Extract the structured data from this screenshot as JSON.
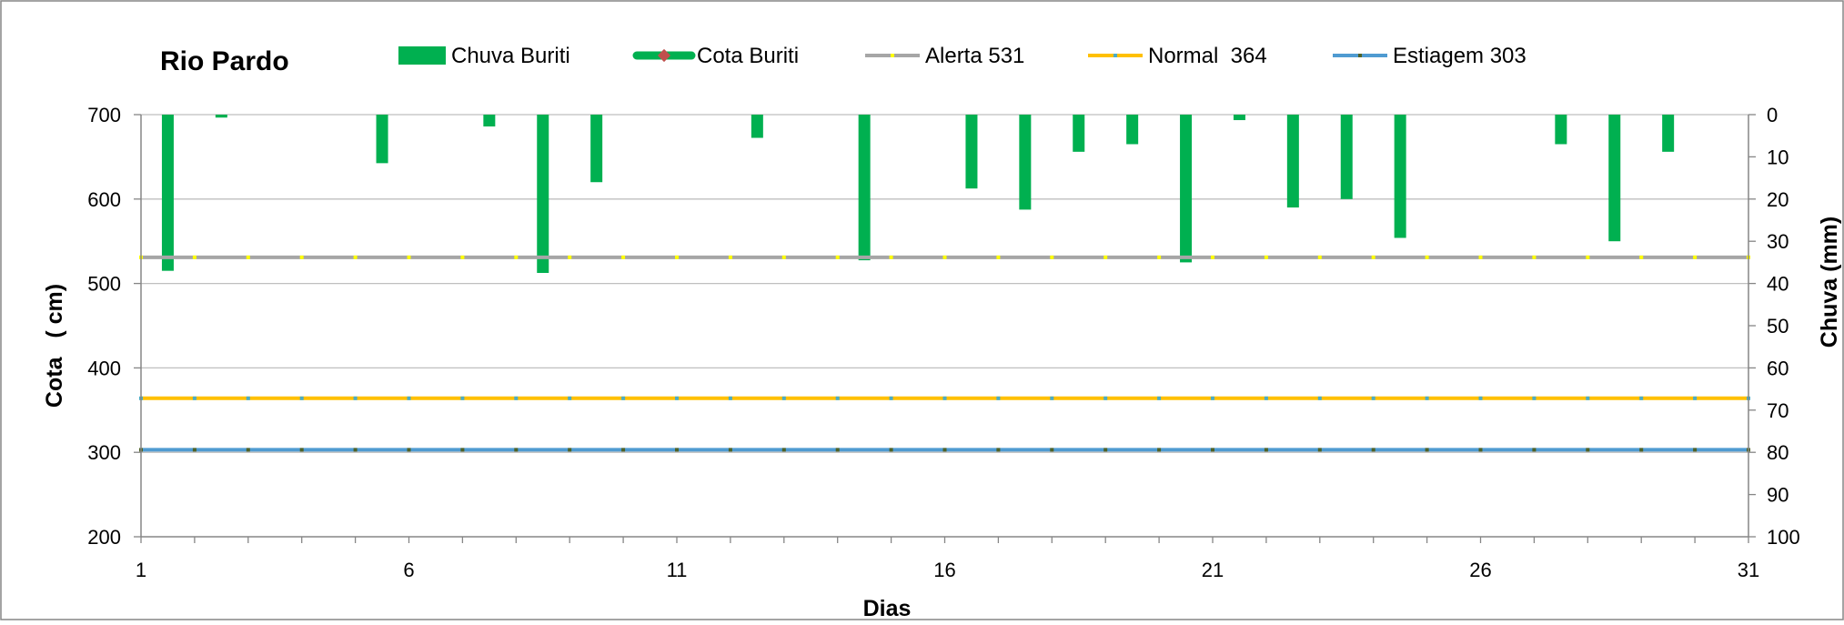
{
  "chart_data": {
    "type": "bar",
    "title": "Rio Pardo",
    "xlabel": "Dias",
    "ylabel": "Cota   ( cm)",
    "y2label": "Chuva (mm)",
    "x_ticks": [
      "1",
      "6",
      "11",
      "16",
      "21",
      "26",
      "31"
    ],
    "y_ticks": [
      "700",
      "600",
      "500",
      "400",
      "300",
      "200"
    ],
    "y2_ticks": [
      "0",
      "10",
      "20",
      "30",
      "40",
      "50",
      "60",
      "70",
      "80",
      "90",
      "100"
    ],
    "xlim": [
      1,
      31
    ],
    "ylim": [
      200,
      700
    ],
    "y2lim": [
      0,
      100
    ],
    "y2_inverted": true,
    "grid": "horizontal",
    "legend_position": "top",
    "colors": {
      "chuva": "#00b050",
      "cota": "#00b050",
      "cota_marker": "#c0504d",
      "alerta": "#a6a6a6",
      "alerta_marker": "#ffff00",
      "normal": "#ffc000",
      "normal_marker": "#4bacc6",
      "estiagem": "#4f9bd1",
      "estiagem_marker": "#4f6228",
      "grid": "#bfbfbf",
      "axis": "#868686"
    },
    "series": [
      {
        "name": "Chuva Buriti",
        "type": "bar",
        "axis": "right",
        "x": [
          1.5,
          2.5,
          5.5,
          7.5,
          8.5,
          9.5,
          12.5,
          14.5,
          16.5,
          17.5,
          18.5,
          19.5,
          20.5,
          21.5,
          22.5,
          23.5,
          24.5,
          27.5,
          28.5,
          29.5
        ],
        "values": [
          37,
          0.7,
          11.5,
          2.8,
          37.5,
          16,
          5.5,
          34.5,
          17.5,
          22.5,
          8.8,
          7,
          35,
          1.3,
          22,
          20,
          29.2,
          7,
          30,
          8.8
        ]
      },
      {
        "name": "Cota Buriti",
        "type": "line",
        "axis": "left",
        "x": [],
        "values": []
      },
      {
        "name": "Alerta 531",
        "type": "line",
        "axis": "left",
        "x": [
          1,
          31
        ],
        "values": [
          531,
          531
        ]
      },
      {
        "name": "Normal  364",
        "type": "line",
        "axis": "left",
        "x": [
          1,
          31
        ],
        "values": [
          364,
          364
        ]
      },
      {
        "name": "Estiagem 303",
        "type": "line",
        "axis": "left",
        "x": [
          1,
          31
        ],
        "values": [
          303,
          303
        ]
      }
    ]
  }
}
